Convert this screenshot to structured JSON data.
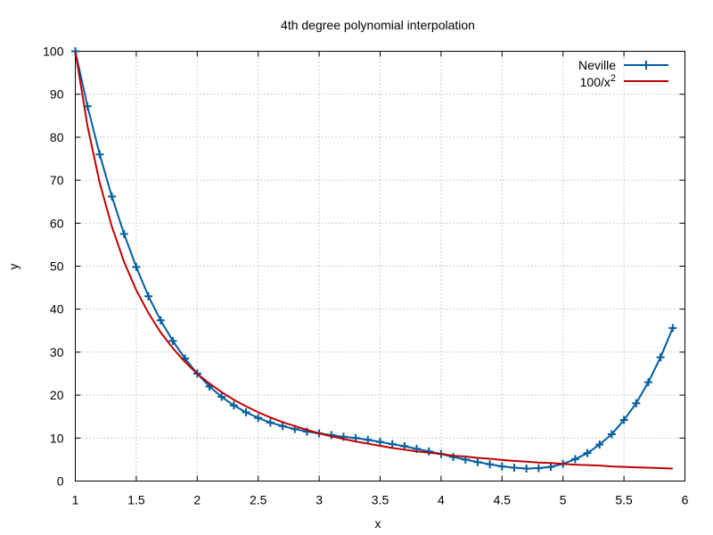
{
  "chart_data": {
    "type": "line",
    "title": "4th degree polynomial interpolation",
    "xlabel": "x",
    "ylabel": "y",
    "xlim": [
      1,
      6
    ],
    "ylim": [
      0,
      100
    ],
    "xticks": [
      "1",
      "1.5",
      "2",
      "2.5",
      "3",
      "3.5",
      "4",
      "4.5",
      "5",
      "5.5",
      "6"
    ],
    "yticks": [
      "0",
      "10",
      "20",
      "30",
      "40",
      "50",
      "60",
      "70",
      "80",
      "90",
      "100"
    ],
    "grid": true,
    "legend_position": "top-right",
    "series": [
      {
        "name": "Neville",
        "color": "#005ea0",
        "marker": "plus",
        "x": [
          1.0,
          1.1,
          1.2,
          1.3,
          1.4,
          1.5,
          1.6,
          1.7,
          1.8,
          1.9,
          2.0,
          2.1,
          2.2,
          2.3,
          2.4,
          2.5,
          2.6,
          2.7,
          2.8,
          2.9,
          3.0,
          3.1,
          3.2,
          3.3,
          3.4,
          3.5,
          3.6,
          3.7,
          3.8,
          3.9,
          4.0,
          4.1,
          4.2,
          4.3,
          4.4,
          4.5,
          4.6,
          4.7,
          4.8,
          4.9,
          5.0,
          5.1,
          5.2,
          5.3,
          5.4,
          5.5,
          5.6,
          5.7,
          5.8,
          5.9
        ],
        "y": [
          100,
          87.2,
          76.0,
          66.2,
          57.5,
          49.8,
          43.0,
          37.4,
          32.6,
          28.5,
          25.0,
          22.0,
          19.6,
          17.6,
          16.0,
          14.7,
          13.6,
          12.8,
          12.1,
          11.5,
          11.1,
          10.7,
          10.3,
          10.0,
          9.6,
          9.1,
          8.6,
          8.1,
          7.5,
          6.9,
          6.3,
          5.6,
          5.0,
          4.4,
          3.9,
          3.4,
          3.1,
          2.9,
          3.0,
          3.3,
          4.0,
          5.1,
          6.5,
          8.5,
          10.9,
          14.2,
          18.1,
          23.0,
          28.8,
          35.6
        ]
      },
      {
        "name": "100/x",
        "name_superscript": "2",
        "color": "#c00000",
        "marker": "none",
        "x": [
          1.0,
          1.1,
          1.2,
          1.3,
          1.4,
          1.5,
          1.6,
          1.7,
          1.8,
          1.9,
          2.0,
          2.1,
          2.2,
          2.3,
          2.4,
          2.5,
          2.6,
          2.7,
          2.8,
          2.9,
          3.0,
          3.1,
          3.2,
          3.3,
          3.4,
          3.5,
          3.6,
          3.7,
          3.8,
          3.9,
          4.0,
          4.1,
          4.2,
          4.3,
          4.4,
          4.5,
          4.6,
          4.7,
          4.8,
          4.9,
          5.0,
          5.1,
          5.2,
          5.3,
          5.4,
          5.5,
          5.6,
          5.7,
          5.8,
          5.9
        ],
        "y": [
          100,
          82.6,
          69.4,
          59.2,
          51.0,
          44.4,
          39.1,
          34.6,
          30.9,
          27.7,
          25.0,
          22.7,
          20.7,
          18.9,
          17.4,
          16.0,
          14.8,
          13.7,
          12.8,
          11.9,
          11.1,
          10.4,
          9.8,
          9.2,
          8.7,
          8.2,
          7.7,
          7.3,
          6.9,
          6.6,
          6.3,
          5.9,
          5.7,
          5.4,
          5.2,
          4.9,
          4.7,
          4.5,
          4.3,
          4.2,
          4.0,
          3.8,
          3.7,
          3.6,
          3.4,
          3.3,
          3.2,
          3.1,
          3.0,
          2.9
        ]
      }
    ]
  }
}
